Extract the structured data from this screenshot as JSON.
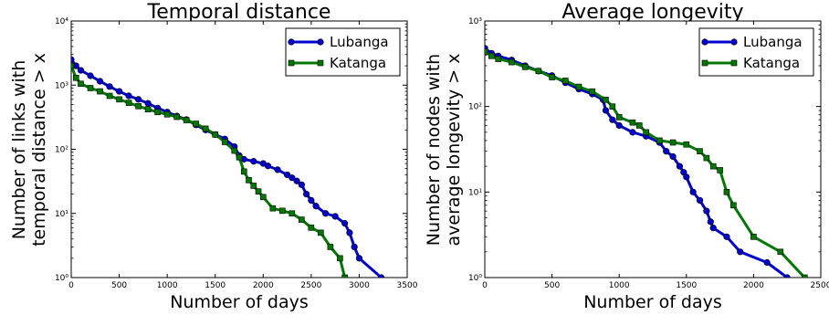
{
  "chart_data": [
    {
      "type": "line",
      "title": "Temporal distance",
      "xlabel": "Number of days",
      "ylabel": [
        "Number of links with",
        "temporal distance > x"
      ],
      "xlim": [
        0,
        3500
      ],
      "ylim": [
        1,
        10000
      ],
      "yscale": "log",
      "xticks": [
        0,
        500,
        1000,
        1500,
        2000,
        2500,
        3000,
        3500
      ],
      "yticks": [
        1,
        10,
        100,
        1000,
        10000
      ],
      "ytick_labels": [
        "10⁰",
        "10¹",
        "10²",
        "10³",
        "10⁴"
      ],
      "legend_position": "top-right",
      "series": [
        {
          "name": "Lubanga",
          "color": "#0000cc",
          "marker": "circle",
          "points": [
            [
              0,
              2500
            ],
            [
              50,
              2000
            ],
            [
              100,
              1700
            ],
            [
              200,
              1400
            ],
            [
              300,
              1150
            ],
            [
              400,
              950
            ],
            [
              500,
              800
            ],
            [
              600,
              680
            ],
            [
              700,
              600
            ],
            [
              800,
              520
            ],
            [
              900,
              440
            ],
            [
              1000,
              380
            ],
            [
              1100,
              330
            ],
            [
              1200,
              290
            ],
            [
              1300,
              240
            ],
            [
              1400,
              200
            ],
            [
              1500,
              170
            ],
            [
              1600,
              145
            ],
            [
              1700,
              110
            ],
            [
              1750,
              80
            ],
            [
              1800,
              70
            ],
            [
              1900,
              65
            ],
            [
              2000,
              60
            ],
            [
              2050,
              55
            ],
            [
              2150,
              48
            ],
            [
              2250,
              40
            ],
            [
              2300,
              36
            ],
            [
              2350,
              32
            ],
            [
              2400,
              28
            ],
            [
              2450,
              20
            ],
            [
              2500,
              16
            ],
            [
              2550,
              13
            ],
            [
              2650,
              10
            ],
            [
              2750,
              9
            ],
            [
              2850,
              7
            ],
            [
              2900,
              5
            ],
            [
              2950,
              3
            ],
            [
              3000,
              2
            ],
            [
              3230,
              1
            ]
          ]
        },
        {
          "name": "Katanga",
          "color": "#007700",
          "marker": "square",
          "points": [
            [
              0,
              2000
            ],
            [
              50,
              1300
            ],
            [
              100,
              1050
            ],
            [
              200,
              900
            ],
            [
              300,
              800
            ],
            [
              400,
              680
            ],
            [
              500,
              600
            ],
            [
              600,
              530
            ],
            [
              700,
              470
            ],
            [
              800,
              420
            ],
            [
              900,
              380
            ],
            [
              1000,
              350
            ],
            [
              1100,
              320
            ],
            [
              1200,
              285
            ],
            [
              1300,
              250
            ],
            [
              1400,
              210
            ],
            [
              1500,
              170
            ],
            [
              1600,
              130
            ],
            [
              1700,
              95
            ],
            [
              1750,
              75
            ],
            [
              1800,
              45
            ],
            [
              1850,
              33
            ],
            [
              1900,
              27
            ],
            [
              1950,
              22
            ],
            [
              2000,
              18
            ],
            [
              2100,
              12
            ],
            [
              2200,
              11
            ],
            [
              2300,
              10
            ],
            [
              2400,
              8
            ],
            [
              2500,
              6
            ],
            [
              2600,
              5
            ],
            [
              2700,
              3
            ],
            [
              2800,
              2
            ],
            [
              2850,
              1
            ]
          ]
        }
      ]
    },
    {
      "type": "line",
      "title": "Average longevity",
      "xlabel": "Number of days",
      "ylabel": [
        "Number of nodes with",
        "average longevity > x"
      ],
      "xlim": [
        0,
        2500
      ],
      "ylim": [
        1,
        1000
      ],
      "yscale": "log",
      "xticks": [
        0,
        500,
        1000,
        1500,
        2000,
        2500
      ],
      "yticks": [
        1,
        10,
        100,
        1000
      ],
      "ytick_labels": [
        "10⁰",
        "10¹",
        "10²",
        "10³"
      ],
      "legend_position": "top-right",
      "series": [
        {
          "name": "Lubanga",
          "color": "#0000cc",
          "marker": "circle",
          "points": [
            [
              0,
              480
            ],
            [
              50,
              420
            ],
            [
              100,
              390
            ],
            [
              200,
              350
            ],
            [
              300,
              300
            ],
            [
              400,
              260
            ],
            [
              500,
              230
            ],
            [
              600,
              190
            ],
            [
              700,
              160
            ],
            [
              800,
              140
            ],
            [
              880,
              120
            ],
            [
              900,
              90
            ],
            [
              950,
              70
            ],
            [
              1000,
              60
            ],
            [
              1100,
              50
            ],
            [
              1200,
              45
            ],
            [
              1300,
              38
            ],
            [
              1350,
              30
            ],
            [
              1400,
              26
            ],
            [
              1450,
              20
            ],
            [
              1480,
              17
            ],
            [
              1500,
              15
            ],
            [
              1550,
              10
            ],
            [
              1600,
              8
            ],
            [
              1650,
              6
            ],
            [
              1680,
              4.5
            ],
            [
              1700,
              3.8
            ],
            [
              1800,
              3
            ],
            [
              1900,
              2
            ],
            [
              2100,
              1.5
            ],
            [
              2250,
              1
            ]
          ]
        },
        {
          "name": "Katanga",
          "color": "#007700",
          "marker": "square",
          "points": [
            [
              0,
              440
            ],
            [
              50,
              390
            ],
            [
              100,
              360
            ],
            [
              200,
              330
            ],
            [
              300,
              290
            ],
            [
              400,
              260
            ],
            [
              500,
              220
            ],
            [
              600,
              200
            ],
            [
              700,
              170
            ],
            [
              800,
              150
            ],
            [
              900,
              120
            ],
            [
              950,
              100
            ],
            [
              1000,
              75
            ],
            [
              1100,
              65
            ],
            [
              1150,
              60
            ],
            [
              1200,
              50
            ],
            [
              1300,
              40
            ],
            [
              1400,
              38
            ],
            [
              1500,
              36
            ],
            [
              1600,
              30
            ],
            [
              1650,
              25
            ],
            [
              1700,
              20
            ],
            [
              1750,
              18
            ],
            [
              1800,
              10
            ],
            [
              1850,
              7
            ],
            [
              2000,
              3
            ],
            [
              2200,
              2
            ],
            [
              2380,
              1
            ]
          ]
        }
      ]
    }
  ]
}
